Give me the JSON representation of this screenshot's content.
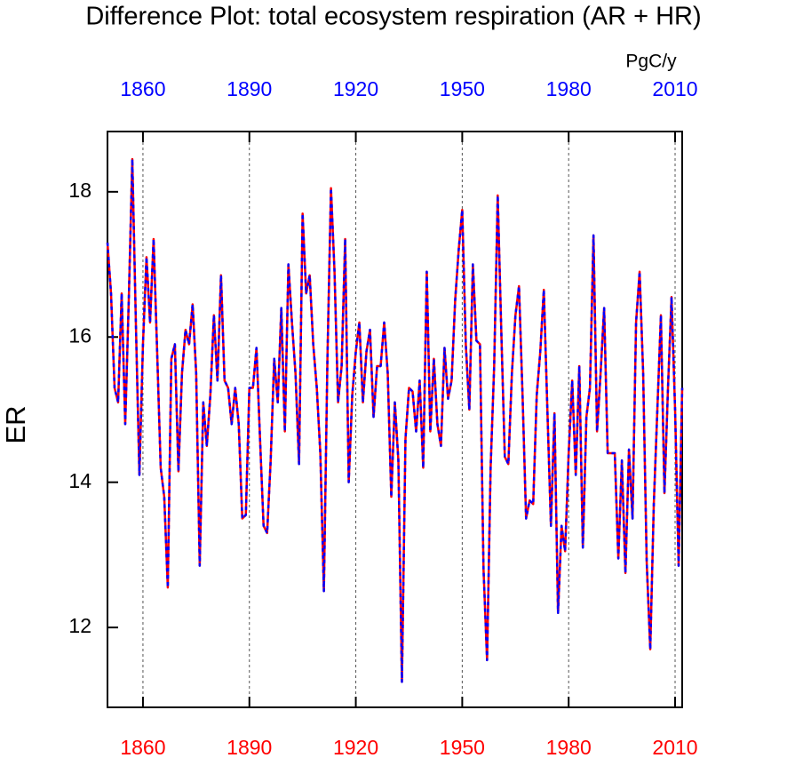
{
  "chart_data": {
    "type": "line",
    "title": "Difference Plot: total ecosystem respiration (AR + HR)",
    "y_label": "ER",
    "units": "PgC/y",
    "x": [
      1850,
      1851,
      1852,
      1853,
      1854,
      1855,
      1856,
      1857,
      1858,
      1859,
      1860,
      1861,
      1862,
      1863,
      1864,
      1865,
      1866,
      1867,
      1868,
      1869,
      1870,
      1871,
      1872,
      1873,
      1874,
      1875,
      1876,
      1877,
      1878,
      1879,
      1880,
      1881,
      1882,
      1883,
      1884,
      1885,
      1886,
      1887,
      1888,
      1889,
      1890,
      1891,
      1892,
      1893,
      1894,
      1895,
      1896,
      1897,
      1898,
      1899,
      1900,
      1901,
      1902,
      1903,
      1904,
      1905,
      1906,
      1907,
      1908,
      1909,
      1910,
      1911,
      1912,
      1913,
      1914,
      1915,
      1916,
      1917,
      1918,
      1919,
      1920,
      1921,
      1922,
      1923,
      1924,
      1925,
      1926,
      1927,
      1928,
      1929,
      1930,
      1931,
      1932,
      1933,
      1934,
      1935,
      1936,
      1937,
      1938,
      1939,
      1940,
      1941,
      1942,
      1943,
      1944,
      1945,
      1946,
      1947,
      1948,
      1949,
      1950,
      1951,
      1952,
      1953,
      1954,
      1955,
      1956,
      1957,
      1958,
      1959,
      1960,
      1961,
      1962,
      1963,
      1964,
      1965,
      1966,
      1967,
      1968,
      1969,
      1970,
      1971,
      1972,
      1973,
      1974,
      1975,
      1976,
      1977,
      1978,
      1979,
      1980,
      1981,
      1982,
      1983,
      1984,
      1985,
      1986,
      1987,
      1988,
      1989,
      1990,
      1991,
      1992,
      1993,
      1994,
      1995,
      1996,
      1997,
      1998,
      1999,
      2000,
      2001,
      2002,
      2003,
      2004,
      2005,
      2006,
      2007,
      2008,
      2009,
      2010,
      2011,
      2012
    ],
    "series": [
      {
        "color": "#ff0000",
        "dash": false,
        "values": [
          17.3,
          16.6,
          15.3,
          15.1,
          16.6,
          14.8,
          16.5,
          18.45,
          16.2,
          14.1,
          15.9,
          17.1,
          16.2,
          17.35,
          15.8,
          14.2,
          13.8,
          12.55,
          15.7,
          15.9,
          14.15,
          15.5,
          16.1,
          15.9,
          16.45,
          15.5,
          12.85,
          15.1,
          14.5,
          15.2,
          16.3,
          15.4,
          16.85,
          15.4,
          15.3,
          14.8,
          15.3,
          14.8,
          13.5,
          13.55,
          15.3,
          15.3,
          15.85,
          14.6,
          13.4,
          13.3,
          14.3,
          15.7,
          15.1,
          16.4,
          14.7,
          17.0,
          16.2,
          15.5,
          14.25,
          17.7,
          16.6,
          16.85,
          15.9,
          15.3,
          14.4,
          12.5,
          15.7,
          18.05,
          16.9,
          15.1,
          15.6,
          17.35,
          14.0,
          15.2,
          15.8,
          16.2,
          15.1,
          15.8,
          16.1,
          14.9,
          15.6,
          15.6,
          16.2,
          15.5,
          13.8,
          15.1,
          14.3,
          11.25,
          14.6,
          15.3,
          15.25,
          14.7,
          15.4,
          14.2,
          16.9,
          14.7,
          15.7,
          14.8,
          14.5,
          15.85,
          15.15,
          15.4,
          16.5,
          17.2,
          17.75,
          15.9,
          15.0,
          17.0,
          15.95,
          15.9,
          12.8,
          11.55,
          14.2,
          15.6,
          17.95,
          16.1,
          14.35,
          14.25,
          15.5,
          16.3,
          16.7,
          15.2,
          13.5,
          13.75,
          13.7,
          15.2,
          15.8,
          16.65,
          15.0,
          13.4,
          14.95,
          12.2,
          13.4,
          13.05,
          14.4,
          15.4,
          14.1,
          15.6,
          13.1,
          14.9,
          15.3,
          17.4,
          14.7,
          15.5,
          16.4,
          14.4,
          14.4,
          14.4,
          12.95,
          14.3,
          12.75,
          14.45,
          13.5,
          16.2,
          16.9,
          15.5,
          12.9,
          11.7,
          13.7,
          15.0,
          16.3,
          13.85,
          15.3,
          16.55,
          15.0,
          12.85,
          15.3
        ]
      },
      {
        "color": "#0000ff",
        "dash": true,
        "values": [
          17.3,
          16.6,
          15.3,
          15.1,
          16.6,
          14.8,
          16.5,
          18.45,
          16.2,
          14.1,
          15.9,
          17.1,
          16.2,
          17.35,
          15.8,
          14.2,
          13.8,
          12.55,
          15.7,
          15.9,
          14.15,
          15.5,
          16.1,
          15.9,
          16.45,
          15.5,
          12.85,
          15.1,
          14.5,
          15.2,
          16.3,
          15.4,
          16.85,
          15.4,
          15.3,
          14.8,
          15.3,
          14.8,
          13.5,
          13.55,
          15.3,
          15.3,
          15.85,
          14.6,
          13.4,
          13.3,
          14.3,
          15.7,
          15.1,
          16.4,
          14.7,
          17.0,
          16.2,
          15.5,
          14.25,
          17.7,
          16.6,
          16.85,
          15.9,
          15.3,
          14.4,
          12.5,
          15.7,
          18.05,
          16.9,
          15.1,
          15.6,
          17.35,
          14.0,
          15.2,
          15.8,
          16.2,
          15.1,
          15.8,
          16.1,
          14.9,
          15.6,
          15.6,
          16.2,
          15.5,
          13.8,
          15.1,
          14.3,
          11.25,
          14.6,
          15.3,
          15.25,
          14.7,
          15.4,
          14.2,
          16.9,
          14.7,
          15.7,
          14.8,
          14.5,
          15.85,
          15.15,
          15.4,
          16.5,
          17.2,
          17.75,
          15.9,
          15.0,
          17.0,
          15.95,
          15.9,
          12.8,
          11.55,
          14.2,
          15.6,
          17.95,
          16.1,
          14.35,
          14.25,
          15.5,
          16.3,
          16.7,
          15.2,
          13.5,
          13.75,
          13.7,
          15.2,
          15.8,
          16.65,
          15.0,
          13.4,
          14.95,
          12.2,
          13.4,
          13.05,
          14.4,
          15.4,
          14.1,
          15.6,
          13.1,
          14.9,
          15.3,
          17.4,
          14.7,
          15.5,
          16.4,
          14.4,
          14.4,
          14.4,
          12.95,
          14.3,
          12.75,
          14.45,
          13.5,
          16.2,
          16.9,
          15.5,
          12.9,
          11.7,
          13.7,
          15.0,
          16.3,
          13.85,
          15.3,
          16.55,
          15.0,
          12.85,
          15.3
        ]
      }
    ],
    "xlim": [
      1850,
      2012
    ],
    "xticks": [
      1860,
      1890,
      1920,
      1950,
      1980,
      2010
    ],
    "ylim": [
      10.9,
      18.83
    ],
    "yticks": [
      12,
      14,
      16,
      18
    ],
    "bottom_tick_color": "#ff0000",
    "top_tick_color": "#0000ff",
    "grid": true
  }
}
